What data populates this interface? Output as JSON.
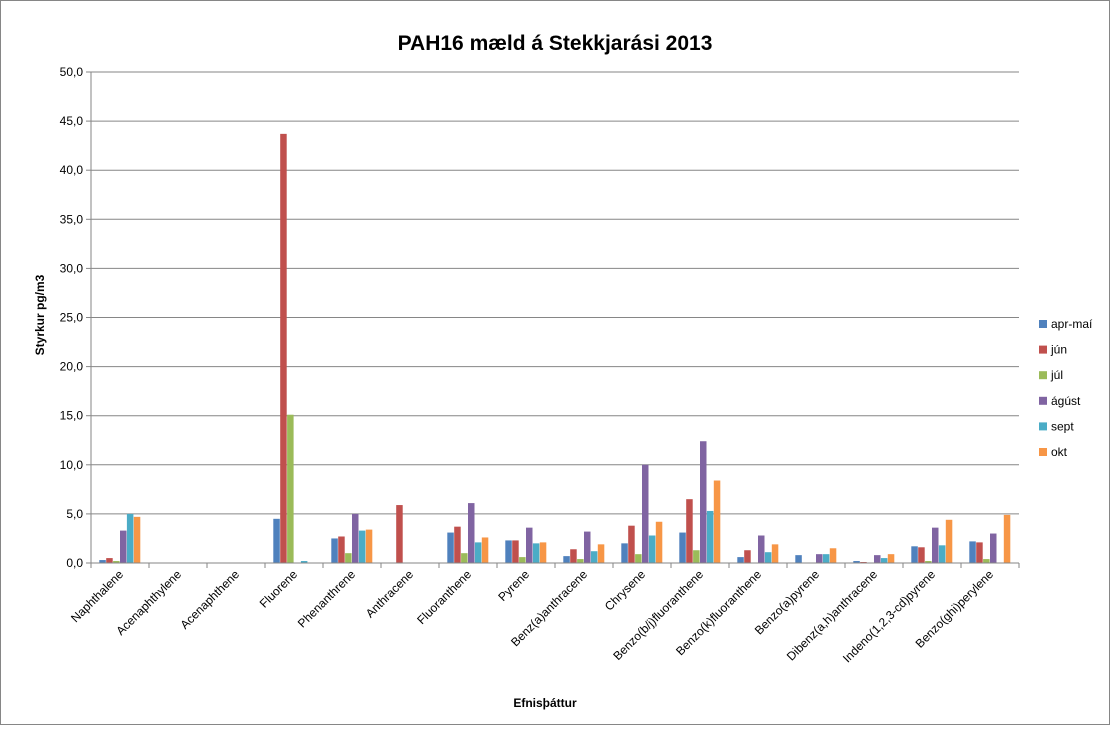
{
  "chart_data": {
    "type": "bar",
    "title": "PAH16 mæld á Stekkjarási 2013",
    "xlabel": "Efnisþáttur",
    "ylabel": "Styrkur pg/m3",
    "ylim": [
      0,
      50
    ],
    "y_ticks": [
      "0,0",
      "5,0",
      "10,0",
      "15,0",
      "20,0",
      "25,0",
      "30,0",
      "35,0",
      "40,0",
      "45,0",
      "50,0"
    ],
    "grid": true,
    "legend_position": "right",
    "categories": [
      "Naphthalene",
      "Acenaphthylene",
      "Acenaphthene",
      "Fluorene",
      "Phenanthrene",
      "Anthracene",
      "Fluoranthene",
      "Pyrene",
      "Benz(a)anthracene",
      "Chrysene",
      "Benzo(b/j)fluoranthene",
      "Benzo(k)fluoranthene",
      "Benzo(a)pyrene",
      "Dibenz(a,h)anthracene",
      "Indeno(1,2,3-cd)pyrene",
      "Benzo(ghi)perylene"
    ],
    "series": [
      {
        "name": "apr-maí",
        "color": "#4F81BD",
        "values": [
          0.3,
          0,
          0,
          4.5,
          2.5,
          0,
          3.1,
          2.3,
          0.7,
          2.0,
          3.1,
          0.6,
          0.8,
          0.2,
          1.7,
          2.2
        ]
      },
      {
        "name": "jún",
        "color": "#C0504D",
        "values": [
          0.5,
          0,
          0,
          43.7,
          2.7,
          5.9,
          3.7,
          2.3,
          1.4,
          3.8,
          6.5,
          1.3,
          0,
          0.1,
          1.6,
          2.1
        ]
      },
      {
        "name": "júl",
        "color": "#9BBB59",
        "values": [
          0.2,
          0,
          0,
          15.1,
          1.0,
          0,
          1.0,
          0.6,
          0.4,
          0.9,
          1.3,
          0,
          0,
          0,
          0.2,
          0.4
        ]
      },
      {
        "name": "ágúst",
        "color": "#8064A2",
        "values": [
          3.3,
          0,
          0,
          0,
          5.0,
          0,
          6.1,
          3.6,
          3.2,
          10.0,
          12.4,
          2.8,
          0.9,
          0.8,
          3.6,
          3.0
        ]
      },
      {
        "name": "sept",
        "color": "#4BACC6",
        "values": [
          5.0,
          0,
          0,
          0.2,
          3.3,
          0,
          2.1,
          2.0,
          1.2,
          2.8,
          5.3,
          1.1,
          0.9,
          0.5,
          1.8,
          0
        ]
      },
      {
        "name": "okt",
        "color": "#F79646",
        "values": [
          4.7,
          0,
          0,
          0,
          3.4,
          0,
          2.6,
          2.1,
          1.9,
          4.2,
          8.4,
          1.9,
          1.5,
          0.9,
          4.4,
          4.9
        ]
      }
    ]
  }
}
